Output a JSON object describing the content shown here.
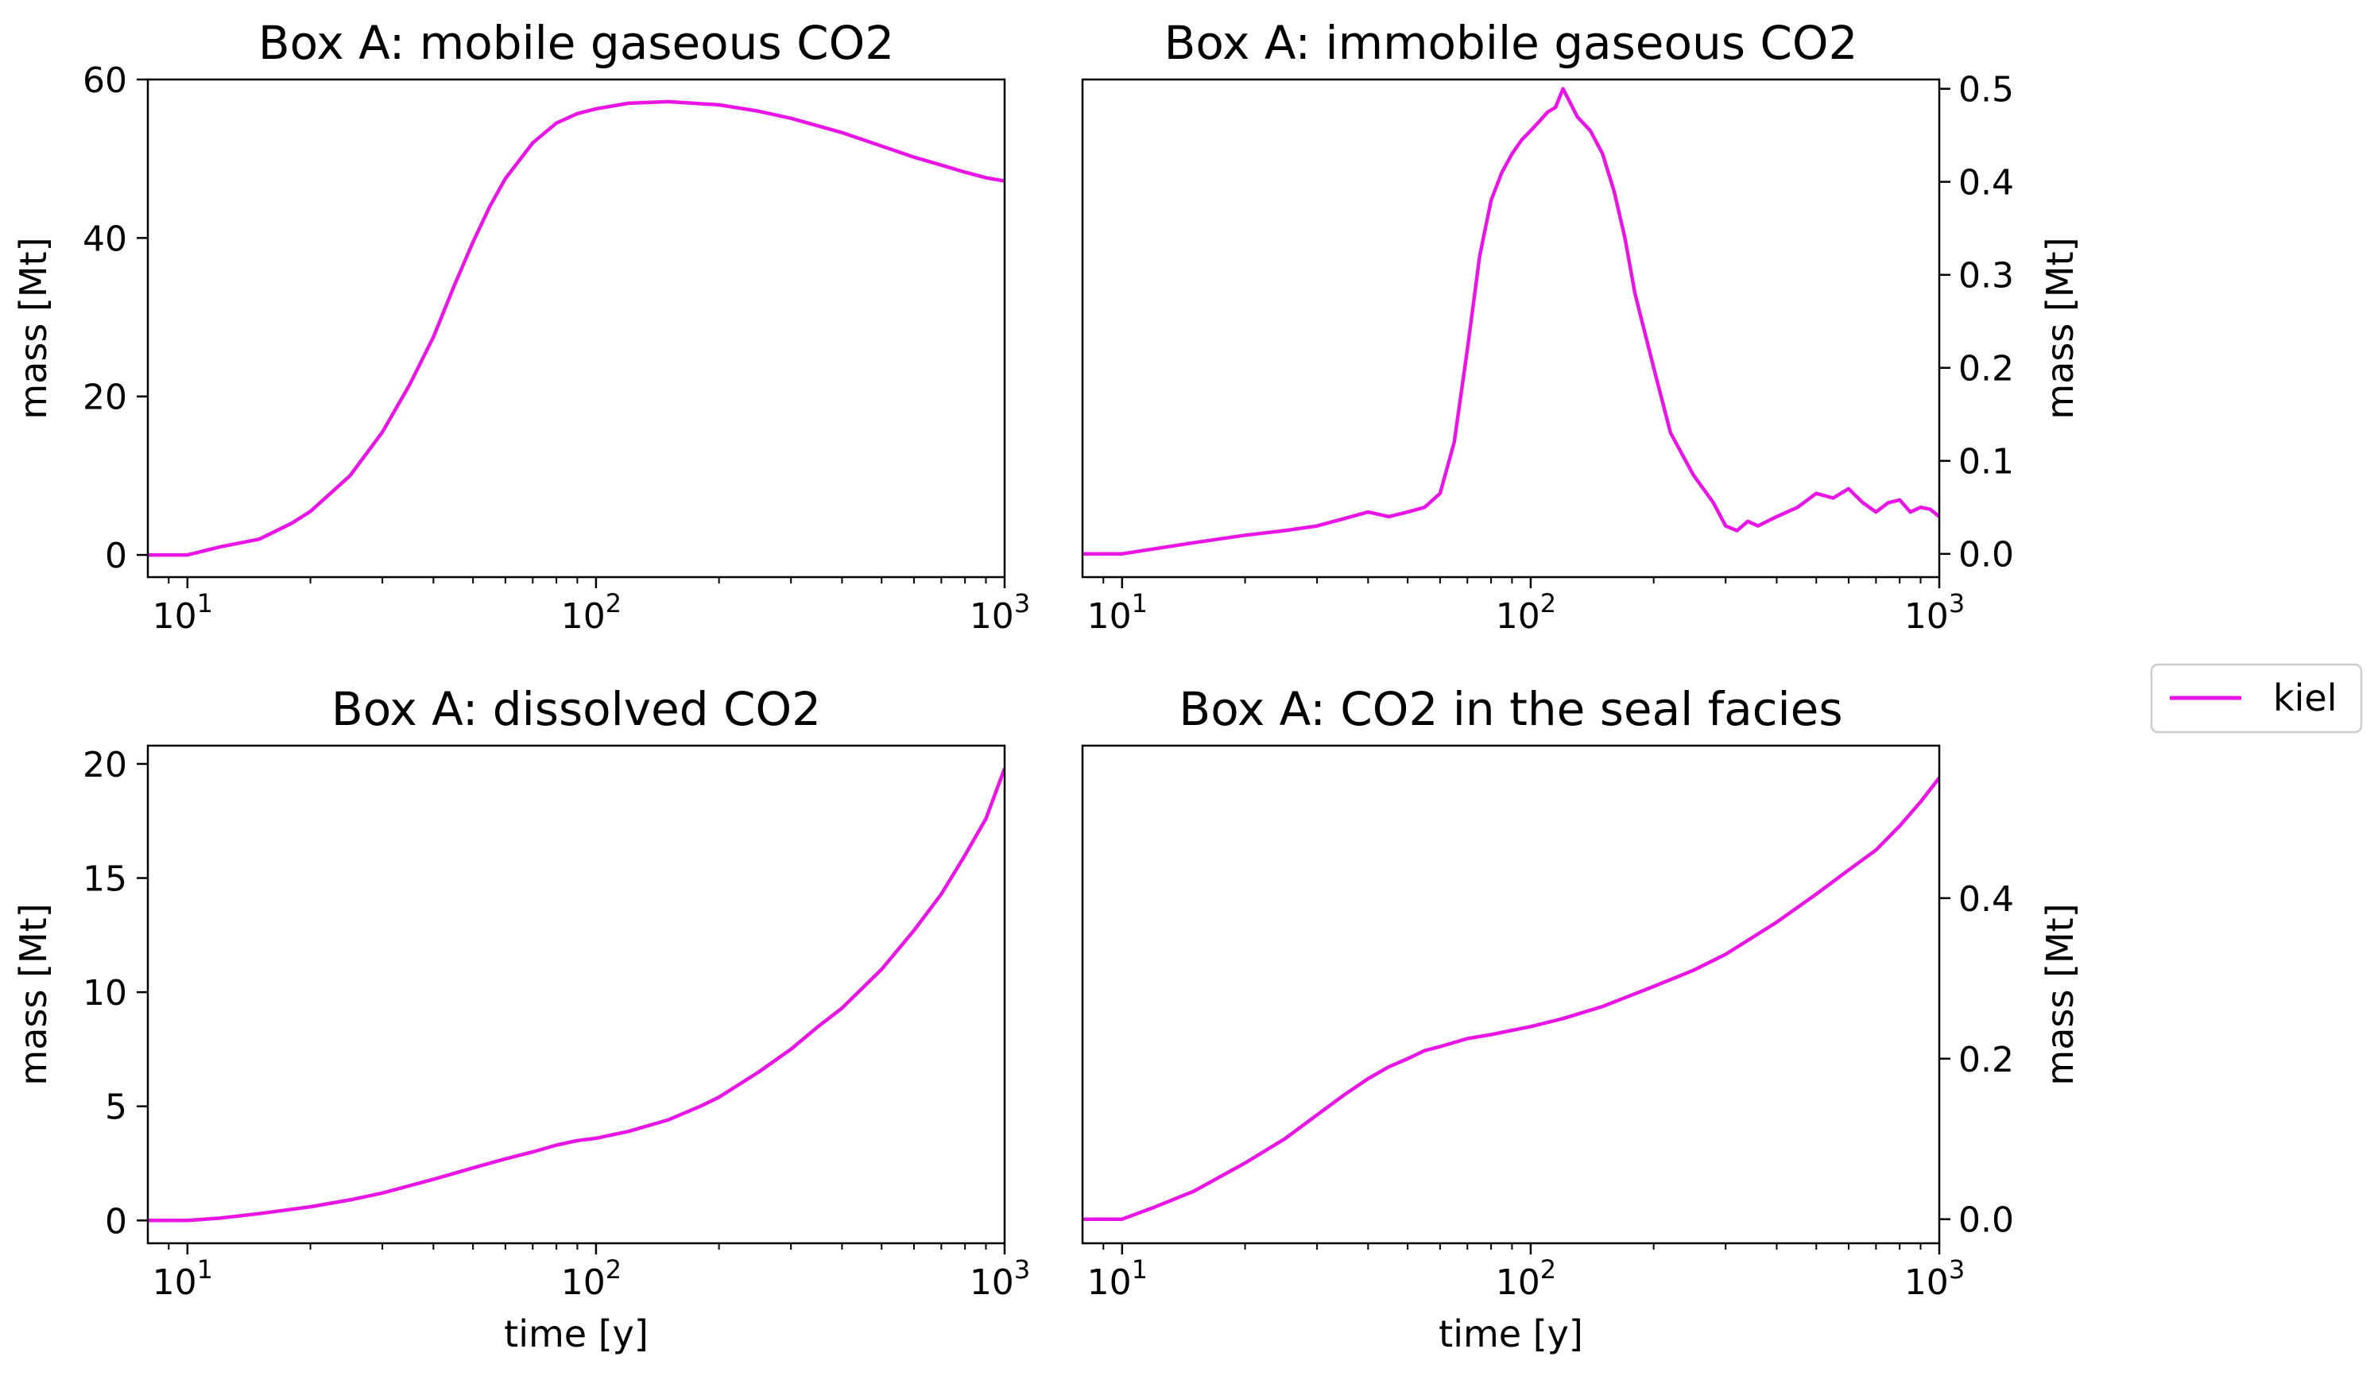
{
  "legend": {
    "entries": [
      "kiel"
    ],
    "placement": "right"
  },
  "line_color": "#e815e5",
  "chart_data": [
    {
      "type": "line",
      "title": "Box A: mobile gaseous CO2",
      "xlabel": "",
      "ylabel": "mass [Mt]",
      "xscale": "log",
      "xlim": [
        8,
        1000
      ],
      "ylim": [
        -2.8,
        60
      ],
      "yaxis_side": "left",
      "xtick_labels": [
        "10",
        "10",
        "10"
      ],
      "xtick_exponents": [
        "1",
        "2",
        "3"
      ],
      "xticks": [
        10,
        100,
        1000
      ],
      "yticks": [
        0,
        20,
        40,
        60
      ],
      "ytick_labels": [
        "0",
        "20",
        "40",
        "60"
      ],
      "series": [
        {
          "name": "kiel",
          "x": [
            8,
            10,
            12,
            15,
            18,
            20,
            25,
            30,
            35,
            40,
            45,
            50,
            55,
            60,
            70,
            80,
            90,
            100,
            120,
            150,
            200,
            250,
            300,
            400,
            500,
            600,
            700,
            800,
            900,
            1000
          ],
          "y": [
            0,
            0,
            1,
            2,
            4,
            5.5,
            10,
            15.5,
            21.5,
            27.5,
            34,
            39.5,
            44,
            47.5,
            52,
            54.5,
            55.7,
            56.3,
            57,
            57.2,
            56.8,
            56,
            55.1,
            53.3,
            51.6,
            50.2,
            49.2,
            48.3,
            47.6,
            47.2
          ]
        }
      ]
    },
    {
      "type": "line",
      "title": "Box A: immobile gaseous CO2",
      "xlabel": "",
      "ylabel": "mass [Mt]",
      "xscale": "log",
      "xlim": [
        8,
        1000
      ],
      "ylim": [
        -0.025,
        0.51
      ],
      "yaxis_side": "right",
      "xtick_labels": [
        "10",
        "10",
        "10"
      ],
      "xtick_exponents": [
        "1",
        "2",
        "3"
      ],
      "xticks": [
        10,
        100,
        1000
      ],
      "yticks": [
        0,
        0.1,
        0.2,
        0.3,
        0.4,
        0.5
      ],
      "ytick_labels": [
        "0.0",
        "0.1",
        "0.2",
        "0.3",
        "0.4",
        "0.5"
      ],
      "series": [
        {
          "name": "kiel",
          "x": [
            8,
            10,
            15,
            20,
            25,
            30,
            35,
            40,
            45,
            50,
            55,
            60,
            65,
            70,
            75,
            80,
            85,
            90,
            95,
            100,
            105,
            110,
            115,
            120,
            125,
            130,
            140,
            150,
            160,
            170,
            180,
            200,
            220,
            250,
            280,
            300,
            320,
            340,
            360,
            400,
            450,
            500,
            550,
            600,
            650,
            700,
            750,
            800,
            850,
            900,
            950,
            1000
          ],
          "y": [
            0,
            0,
            0.012,
            0.02,
            0.025,
            0.03,
            0.038,
            0.045,
            0.04,
            0.045,
            0.05,
            0.065,
            0.12,
            0.22,
            0.32,
            0.38,
            0.41,
            0.43,
            0.445,
            0.455,
            0.465,
            0.475,
            0.48,
            0.5,
            0.485,
            0.47,
            0.455,
            0.43,
            0.39,
            0.34,
            0.28,
            0.2,
            0.13,
            0.085,
            0.055,
            0.03,
            0.025,
            0.035,
            0.03,
            0.04,
            0.05,
            0.065,
            0.06,
            0.07,
            0.055,
            0.045,
            0.055,
            0.058,
            0.045,
            0.05,
            0.048,
            0.04
          ]
        }
      ]
    },
    {
      "type": "line",
      "title": "Box A: dissolved CO2",
      "xlabel": "time [y]",
      "ylabel": "mass [Mt]",
      "xscale": "log",
      "xlim": [
        8,
        1000
      ],
      "ylim": [
        -1,
        20.8
      ],
      "yaxis_side": "left",
      "xtick_labels": [
        "10",
        "10",
        "10"
      ],
      "xtick_exponents": [
        "1",
        "2",
        "3"
      ],
      "xticks": [
        10,
        100,
        1000
      ],
      "yticks": [
        0,
        5,
        10,
        15,
        20
      ],
      "ytick_labels": [
        "0",
        "5",
        "10",
        "15",
        "20"
      ],
      "series": [
        {
          "name": "kiel",
          "x": [
            8,
            10,
            12,
            15,
            20,
            25,
            30,
            40,
            50,
            60,
            70,
            80,
            90,
            100,
            120,
            150,
            180,
            200,
            250,
            300,
            350,
            400,
            500,
            600,
            700,
            800,
            900,
            1000
          ],
          "y": [
            0,
            0,
            0.1,
            0.3,
            0.6,
            0.9,
            1.2,
            1.8,
            2.3,
            2.7,
            3.0,
            3.3,
            3.5,
            3.6,
            3.9,
            4.4,
            5.0,
            5.4,
            6.5,
            7.5,
            8.5,
            9.3,
            11.0,
            12.7,
            14.3,
            16.0,
            17.6,
            19.8
          ]
        }
      ]
    },
    {
      "type": "line",
      "title": "Box A: CO2 in the seal facies",
      "xlabel": "time [y]",
      "ylabel": "mass [Mt]",
      "xscale": "log",
      "xlim": [
        8,
        1000
      ],
      "ylim": [
        -0.03,
        0.59
      ],
      "yaxis_side": "right",
      "xtick_labels": [
        "10",
        "10",
        "10"
      ],
      "xtick_exponents": [
        "1",
        "2",
        "3"
      ],
      "xticks": [
        10,
        100,
        1000
      ],
      "yticks": [
        0,
        0.2,
        0.4
      ],
      "ytick_labels": [
        "0.0",
        "0.2",
        "0.4"
      ],
      "series": [
        {
          "name": "kiel",
          "x": [
            8,
            10,
            12,
            15,
            20,
            25,
            30,
            35,
            40,
            45,
            50,
            55,
            60,
            70,
            80,
            100,
            120,
            150,
            200,
            250,
            300,
            400,
            500,
            600,
            700,
            800,
            900,
            1000
          ],
          "y": [
            0,
            0,
            0.015,
            0.035,
            0.07,
            0.1,
            0.13,
            0.155,
            0.175,
            0.19,
            0.2,
            0.21,
            0.215,
            0.225,
            0.23,
            0.24,
            0.25,
            0.265,
            0.29,
            0.31,
            0.33,
            0.37,
            0.405,
            0.435,
            0.46,
            0.49,
            0.52,
            0.55
          ]
        }
      ]
    }
  ]
}
